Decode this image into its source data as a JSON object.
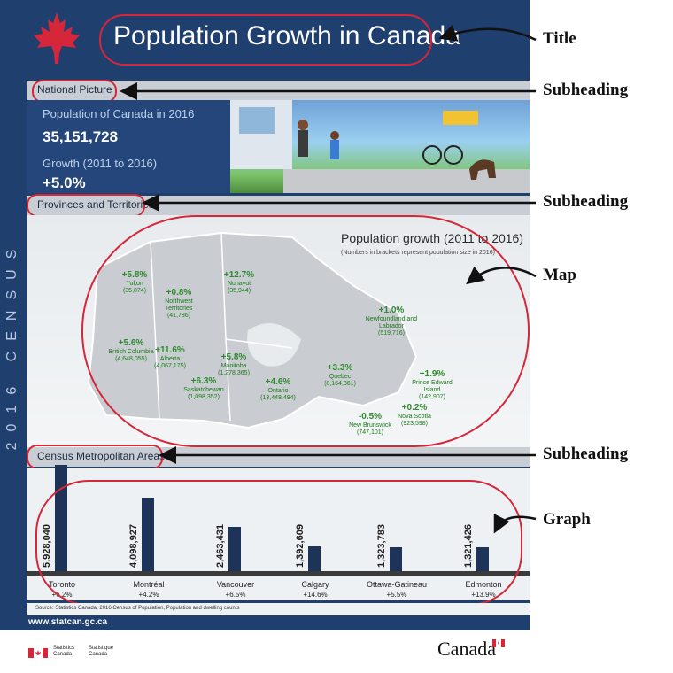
{
  "poster": {
    "title": "Population Growth in Canada",
    "sidebar_text": "2016 CENSUS",
    "national": {
      "subheading": "National Picture",
      "pop_label": "Population of Canada in 2016",
      "pop_value": "35,151,728",
      "growth_label": "Growth (2011 to 2016)",
      "growth_value": "+5.0%"
    },
    "provinces": {
      "subheading": "Provinces and Territories",
      "map_title": "Population growth (2011 to 2016)",
      "map_subtitle": "(Numbers in brackets represent population size in 2016)",
      "items": [
        {
          "pct": "+5.8%",
          "name": "Yukon",
          "pop": "(35,874)"
        },
        {
          "pct": "+0.8%",
          "name": "Northwest Territories",
          "pop": "(41,786)"
        },
        {
          "pct": "+12.7%",
          "name": "Nunavut",
          "pop": "(35,944)"
        },
        {
          "pct": "+5.6%",
          "name": "British Columbia",
          "pop": "(4,648,055)"
        },
        {
          "pct": "+11.6%",
          "name": "Alberta",
          "pop": "(4,067,175)"
        },
        {
          "pct": "+6.3%",
          "name": "Saskatchewan",
          "pop": "(1,098,352)"
        },
        {
          "pct": "+5.8%",
          "name": "Manitoba",
          "pop": "(1,278,365)"
        },
        {
          "pct": "+4.6%",
          "name": "Ontario",
          "pop": "(13,448,494)"
        },
        {
          "pct": "+3.3%",
          "name": "Quebec",
          "pop": "(8,164,361)"
        },
        {
          "pct": "+1.0%",
          "name": "Newfoundland and Labrador",
          "pop": "(519,716)"
        },
        {
          "pct": "+1.9%",
          "name": "Prince Edward Island",
          "pop": "(142,907)"
        },
        {
          "pct": "+0.2%",
          "name": "Nova Scotia",
          "pop": "(923,598)"
        },
        {
          "pct": "-0.5%",
          "name": "New Brunswick",
          "pop": "(747,101)"
        }
      ]
    },
    "cma": {
      "subheading": "Census Metropolitan Areas",
      "source": "Source: Statistics Canada, 2016 Census of Population, Population and dwelling counts"
    },
    "url": "www.statcan.gc.ca",
    "footer": {
      "statcan_en": "Statistics Canada",
      "statcan_fr": "Statistique Canada",
      "wordmark": "Canada"
    }
  },
  "callouts": {
    "title": "Title",
    "subheading1": "Subheading",
    "subheading2": "Subheading",
    "map": "Map",
    "subheading3": "Subheading",
    "graph": "Graph"
  },
  "colors": {
    "accent": "#d6263a",
    "navy": "#1f3f6e",
    "green": "#2f8a2f"
  },
  "chart_data": {
    "type": "bar",
    "categories": [
      "Toronto",
      "Montréal",
      "Vancouver",
      "Calgary",
      "Ottawa-Gatineau",
      "Edmonton"
    ],
    "growth": [
      "+6.2%",
      "+4.2%",
      "+6.5%",
      "+14.6%",
      "+5.5%",
      "+13.9%"
    ],
    "values": [
      5928040,
      4098927,
      2463431,
      1392609,
      1323783,
      1321426
    ],
    "value_labels": [
      "5,928,040",
      "4,098,927",
      "2,463,431",
      "1,392,609",
      "1,323,783",
      "1,321,426"
    ]
  }
}
